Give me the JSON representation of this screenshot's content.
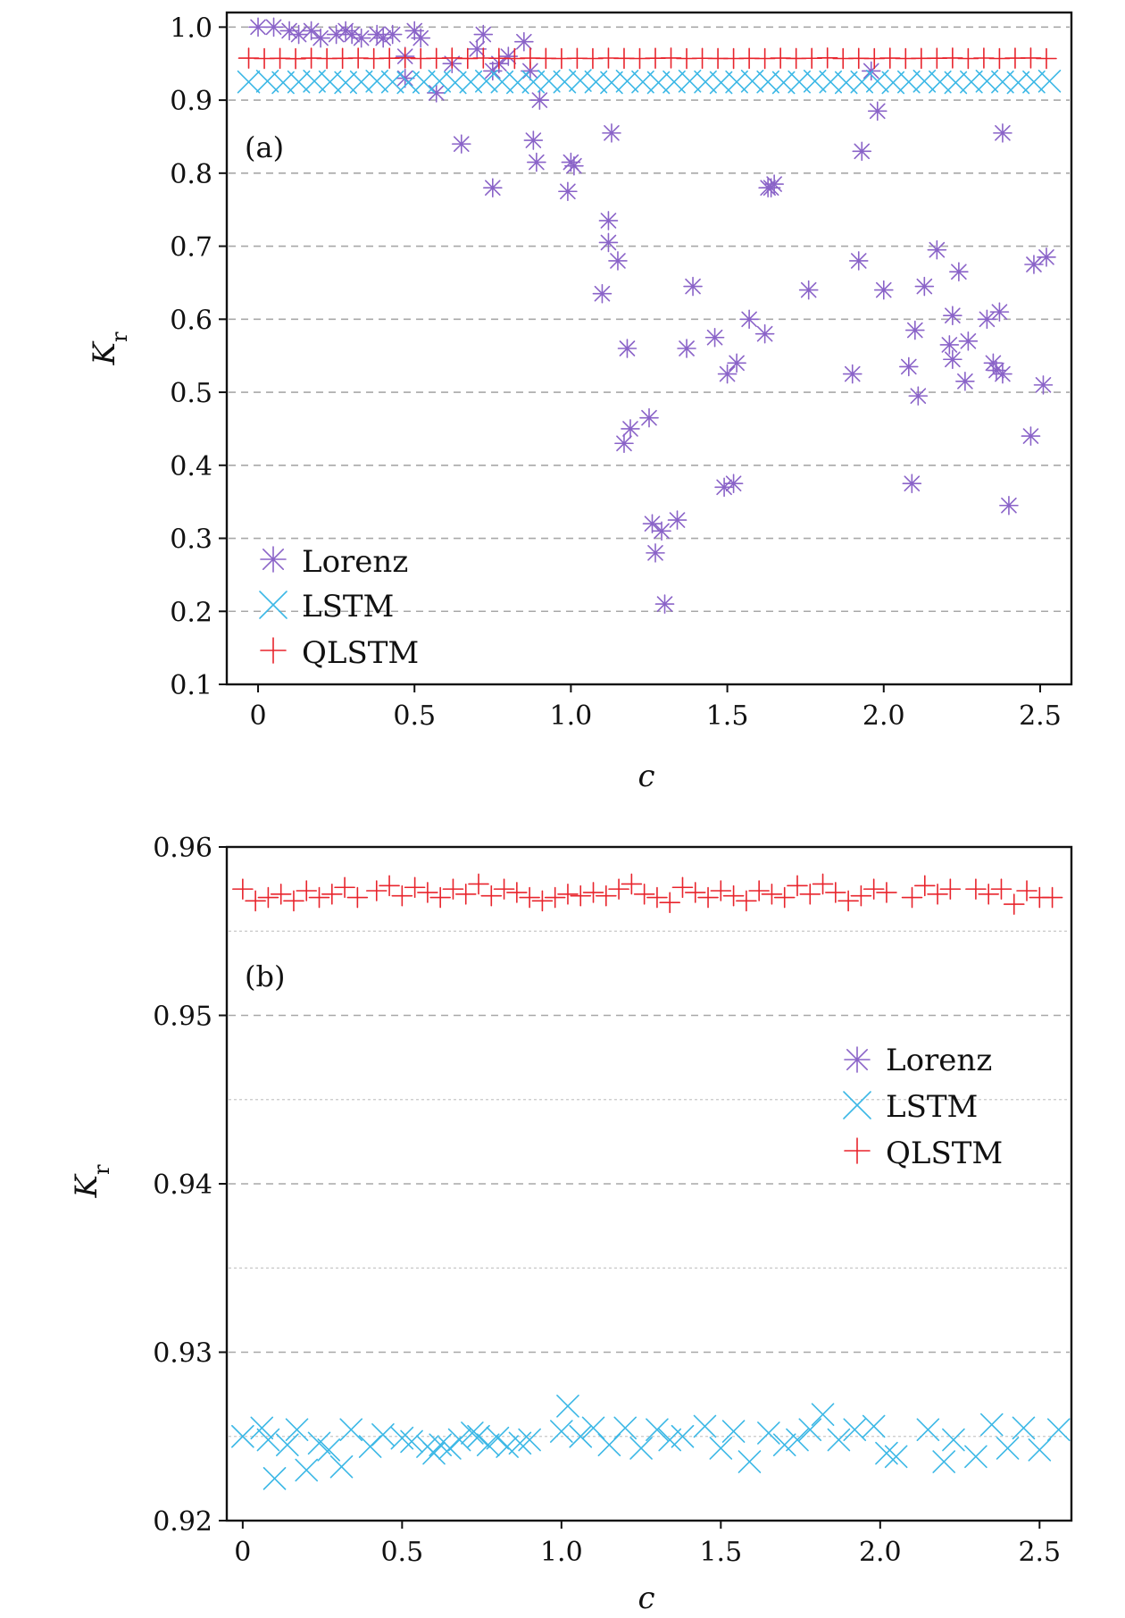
{
  "chart_data": [
    {
      "type": "scatter",
      "panel_label": "(a)",
      "xlabel": "c",
      "ylabel": "K",
      "ylabel_sub": "r",
      "xlim": [
        -0.1,
        2.6
      ],
      "ylim": [
        0.1,
        1.02
      ],
      "x_ticks": [
        0,
        0.5,
        1.0,
        1.5,
        2.0,
        2.5
      ],
      "x_tick_labels": [
        "0",
        "0.5",
        "1.0",
        "1.5",
        "2.0",
        "2.5"
      ],
      "y_ticks": [
        0.1,
        0.2,
        0.3,
        0.4,
        0.5,
        0.6,
        0.7,
        0.8,
        0.9,
        1.0
      ],
      "y_tick_labels": [
        "0.1",
        "0.2",
        "0.3",
        "0.4",
        "0.5",
        "0.6",
        "0.7",
        "0.8",
        "0.9",
        "1.0"
      ],
      "gridlines": [
        0.2,
        0.3,
        0.4,
        0.5,
        0.6,
        0.7,
        0.8,
        0.9,
        1.0
      ],
      "minor_gridlines": [],
      "legend": {
        "position": "lower-left",
        "entries": [
          "Lorenz",
          "LSTM",
          "QLSTM"
        ]
      },
      "series": [
        {
          "name": "Lorenz",
          "marker": "asterisk",
          "color": "#8a63c8",
          "x": [
            0.0,
            0.05,
            0.1,
            0.13,
            0.17,
            0.2,
            0.25,
            0.28,
            0.3,
            0.33,
            0.38,
            0.4,
            0.43,
            0.47,
            0.5,
            0.52,
            0.47,
            0.57,
            0.62,
            0.65,
            0.7,
            0.72,
            0.75,
            0.77,
            0.8,
            0.85,
            0.87,
            0.75,
            0.88,
            0.89,
            0.9,
            0.99,
            1.0,
            1.01,
            1.1,
            1.12,
            1.12,
            1.13,
            1.15,
            1.17,
            1.18,
            1.19,
            1.25,
            1.26,
            1.27,
            1.29,
            1.3,
            1.34,
            1.37,
            1.39,
            1.46,
            1.49,
            1.5,
            1.52,
            1.53,
            1.57,
            1.62,
            1.63,
            1.64,
            1.65,
            1.76,
            1.9,
            1.92,
            1.93,
            1.96,
            1.98,
            2.0,
            2.08,
            2.09,
            2.1,
            2.11,
            2.13,
            2.17,
            2.21,
            2.22,
            2.22,
            2.24,
            2.26,
            2.27,
            2.33,
            2.35,
            2.36,
            2.37,
            2.38,
            2.38,
            2.4,
            2.47,
            2.48,
            2.51,
            2.52
          ],
          "y": [
            1.0,
            1.0,
            0.995,
            0.99,
            0.995,
            0.985,
            0.99,
            0.995,
            0.99,
            0.985,
            0.99,
            0.985,
            0.99,
            0.93,
            0.995,
            0.985,
            0.96,
            0.91,
            0.95,
            0.84,
            0.97,
            0.99,
            0.78,
            0.95,
            0.96,
            0.98,
            0.94,
            0.94,
            0.845,
            0.815,
            0.9,
            0.775,
            0.815,
            0.81,
            0.635,
            0.705,
            0.735,
            0.855,
            0.68,
            0.43,
            0.56,
            0.45,
            0.465,
            0.32,
            0.28,
            0.31,
            0.21,
            0.325,
            0.56,
            0.645,
            0.575,
            0.37,
            0.525,
            0.375,
            0.54,
            0.6,
            0.58,
            0.78,
            0.78,
            0.785,
            0.64,
            0.525,
            0.68,
            0.83,
            0.94,
            0.885,
            0.64,
            0.535,
            0.375,
            0.585,
            0.495,
            0.645,
            0.695,
            0.565,
            0.545,
            0.605,
            0.665,
            0.515,
            0.57,
            0.6,
            0.54,
            0.53,
            0.61,
            0.855,
            0.525,
            0.345,
            0.44,
            0.675,
            0.51,
            0.685
          ]
        },
        {
          "name": "LSTM",
          "marker": "x",
          "color": "#3cb8e6",
          "x": [
            -0.03,
            0.03,
            0.08,
            0.13,
            0.18,
            0.23,
            0.28,
            0.33,
            0.38,
            0.43,
            0.48,
            0.53,
            0.58,
            0.63,
            0.68,
            0.73,
            0.78,
            0.83,
            0.88,
            0.93,
            0.98,
            1.03,
            1.08,
            1.13,
            1.18,
            1.23,
            1.28,
            1.33,
            1.38,
            1.43,
            1.48,
            1.53,
            1.58,
            1.63,
            1.68,
            1.73,
            1.78,
            1.83,
            1.88,
            1.93,
            1.98,
            2.03,
            2.08,
            2.13,
            2.18,
            2.23,
            2.28,
            2.33,
            2.38,
            2.43,
            2.48,
            2.53
          ],
          "y": [
            0.925,
            0.926,
            0.924,
            0.925,
            0.926,
            0.925,
            0.924,
            0.925,
            0.926,
            0.925,
            0.924,
            0.925,
            0.926,
            0.924,
            0.925,
            0.926,
            0.925,
            0.924,
            0.925,
            0.926,
            0.925,
            0.927,
            0.925,
            0.924,
            0.926,
            0.925,
            0.924,
            0.925,
            0.926,
            0.925,
            0.924,
            0.925,
            0.926,
            0.925,
            0.924,
            0.925,
            0.926,
            0.925,
            0.924,
            0.925,
            0.926,
            0.924,
            0.925,
            0.926,
            0.925,
            0.924,
            0.925,
            0.926,
            0.925,
            0.924,
            0.925,
            0.926
          ]
        },
        {
          "name": "QLSTM",
          "marker": "plus",
          "color": "#e8242c",
          "x": [
            -0.03,
            0.02,
            0.07,
            0.12,
            0.17,
            0.22,
            0.27,
            0.32,
            0.37,
            0.42,
            0.47,
            0.52,
            0.57,
            0.62,
            0.67,
            0.72,
            0.77,
            0.82,
            0.87,
            0.92,
            0.97,
            1.02,
            1.07,
            1.12,
            1.17,
            1.22,
            1.27,
            1.32,
            1.37,
            1.42,
            1.47,
            1.52,
            1.57,
            1.62,
            1.67,
            1.72,
            1.77,
            1.82,
            1.87,
            1.92,
            1.97,
            2.02,
            2.07,
            2.12,
            2.17,
            2.22,
            2.27,
            2.32,
            2.37,
            2.42,
            2.47,
            2.52
          ],
          "y": [
            0.9575,
            0.957,
            0.9572,
            0.9568,
            0.9575,
            0.957,
            0.9572,
            0.9576,
            0.957,
            0.9574,
            0.9578,
            0.957,
            0.9573,
            0.9577,
            0.9571,
            0.9576,
            0.9573,
            0.957,
            0.9575,
            0.9572,
            0.957,
            0.9573,
            0.957,
            0.9576,
            0.9572,
            0.957,
            0.9574,
            0.9577,
            0.957,
            0.9573,
            0.9571,
            0.957,
            0.9572,
            0.957,
            0.9575,
            0.9571,
            0.9573,
            0.9578,
            0.957,
            0.9572,
            0.957,
            0.9575,
            0.957,
            0.9572,
            0.9574,
            0.9577,
            0.957,
            0.9576,
            0.957,
            0.9575,
            0.9577,
            0.957
          ]
        }
      ]
    },
    {
      "type": "scatter",
      "panel_label": "(b)",
      "xlabel": "c",
      "ylabel": "K",
      "ylabel_sub": "r",
      "xlim": [
        -0.05,
        2.6
      ],
      "ylim": [
        0.92,
        0.96
      ],
      "x_ticks": [
        0,
        0.5,
        1.0,
        1.5,
        2.0,
        2.5
      ],
      "x_tick_labels": [
        "0",
        "0.5",
        "1.0",
        "1.5",
        "2.0",
        "2.5"
      ],
      "y_ticks": [
        0.92,
        0.93,
        0.94,
        0.95,
        0.96
      ],
      "y_tick_labels": [
        "0.92",
        "0.93",
        "0.94",
        "0.95",
        "0.96"
      ],
      "gridlines": [
        0.93,
        0.94,
        0.95
      ],
      "minor_gridlines": [
        0.925,
        0.935,
        0.945,
        0.955
      ],
      "legend": {
        "position": "upper-right",
        "entries": [
          "Lorenz",
          "LSTM",
          "QLSTM"
        ]
      },
      "series": [
        {
          "name": "Lorenz",
          "marker": "asterisk",
          "color": "#8a63c8",
          "x": [],
          "y": []
        },
        {
          "name": "LSTM",
          "marker": "x",
          "color": "#3cb8e6",
          "x": [
            0.0,
            0.06,
            0.08,
            0.1,
            0.14,
            0.17,
            0.2,
            0.24,
            0.27,
            0.31,
            0.34,
            0.4,
            0.44,
            0.5,
            0.53,
            0.58,
            0.6,
            0.62,
            0.65,
            0.68,
            0.72,
            0.74,
            0.77,
            0.8,
            0.83,
            0.87,
            0.9,
            1.0,
            1.02,
            1.06,
            1.1,
            1.15,
            1.2,
            1.25,
            1.3,
            1.34,
            1.38,
            1.45,
            1.5,
            1.54,
            1.59,
            1.65,
            1.7,
            1.74,
            1.78,
            1.82,
            1.87,
            1.92,
            1.98,
            2.02,
            2.05,
            2.15,
            2.2,
            2.23,
            2.3,
            2.35,
            2.4,
            2.45,
            2.5,
            2.56
          ],
          "y": [
            0.925,
            0.9255,
            0.9248,
            0.9225,
            0.9245,
            0.9254,
            0.923,
            0.9246,
            0.9242,
            0.9232,
            0.9254,
            0.9244,
            0.9251,
            0.9249,
            0.9247,
            0.9244,
            0.924,
            0.9245,
            0.9243,
            0.9248,
            0.9252,
            0.925,
            0.9245,
            0.9249,
            0.9244,
            0.9246,
            0.9248,
            0.9253,
            0.9268,
            0.925,
            0.9255,
            0.9245,
            0.9255,
            0.9243,
            0.9254,
            0.9248,
            0.925,
            0.9256,
            0.9243,
            0.9253,
            0.9235,
            0.9252,
            0.9245,
            0.9248,
            0.9254,
            0.9263,
            0.9248,
            0.9254,
            0.9256,
            0.924,
            0.9238,
            0.9254,
            0.9235,
            0.9248,
            0.9238,
            0.9257,
            0.9243,
            0.9255,
            0.9242,
            0.9254
          ]
        },
        {
          "name": "QLSTM",
          "marker": "plus",
          "color": "#e8242c",
          "x": [
            0.0,
            0.04,
            0.08,
            0.12,
            0.16,
            0.2,
            0.24,
            0.28,
            0.32,
            0.36,
            0.42,
            0.46,
            0.5,
            0.54,
            0.58,
            0.62,
            0.66,
            0.7,
            0.74,
            0.78,
            0.82,
            0.86,
            0.9,
            0.94,
            0.98,
            1.02,
            1.06,
            1.1,
            1.14,
            1.18,
            1.22,
            1.26,
            1.3,
            1.34,
            1.38,
            1.42,
            1.46,
            1.5,
            1.54,
            1.58,
            1.62,
            1.66,
            1.7,
            1.74,
            1.78,
            1.82,
            1.86,
            1.9,
            1.94,
            1.98,
            2.02,
            2.1,
            2.14,
            2.18,
            2.22,
            2.3,
            2.34,
            2.38,
            2.42,
            2.46,
            2.5,
            2.54
          ],
          "y": [
            0.9575,
            0.9568,
            0.957,
            0.9572,
            0.9568,
            0.9574,
            0.957,
            0.9572,
            0.9576,
            0.957,
            0.9574,
            0.9577,
            0.9571,
            0.9576,
            0.9573,
            0.957,
            0.9575,
            0.9572,
            0.9578,
            0.9571,
            0.9575,
            0.9573,
            0.957,
            0.9568,
            0.957,
            0.9572,
            0.9571,
            0.9573,
            0.9571,
            0.9575,
            0.9578,
            0.9572,
            0.957,
            0.9567,
            0.9576,
            0.9573,
            0.957,
            0.9574,
            0.9571,
            0.9568,
            0.9574,
            0.9572,
            0.957,
            0.9577,
            0.9572,
            0.9578,
            0.9573,
            0.9568,
            0.9571,
            0.9575,
            0.9573,
            0.957,
            0.9577,
            0.9572,
            0.9575,
            0.9575,
            0.9572,
            0.9575,
            0.9566,
            0.9574,
            0.957,
            0.957
          ]
        }
      ]
    }
  ]
}
